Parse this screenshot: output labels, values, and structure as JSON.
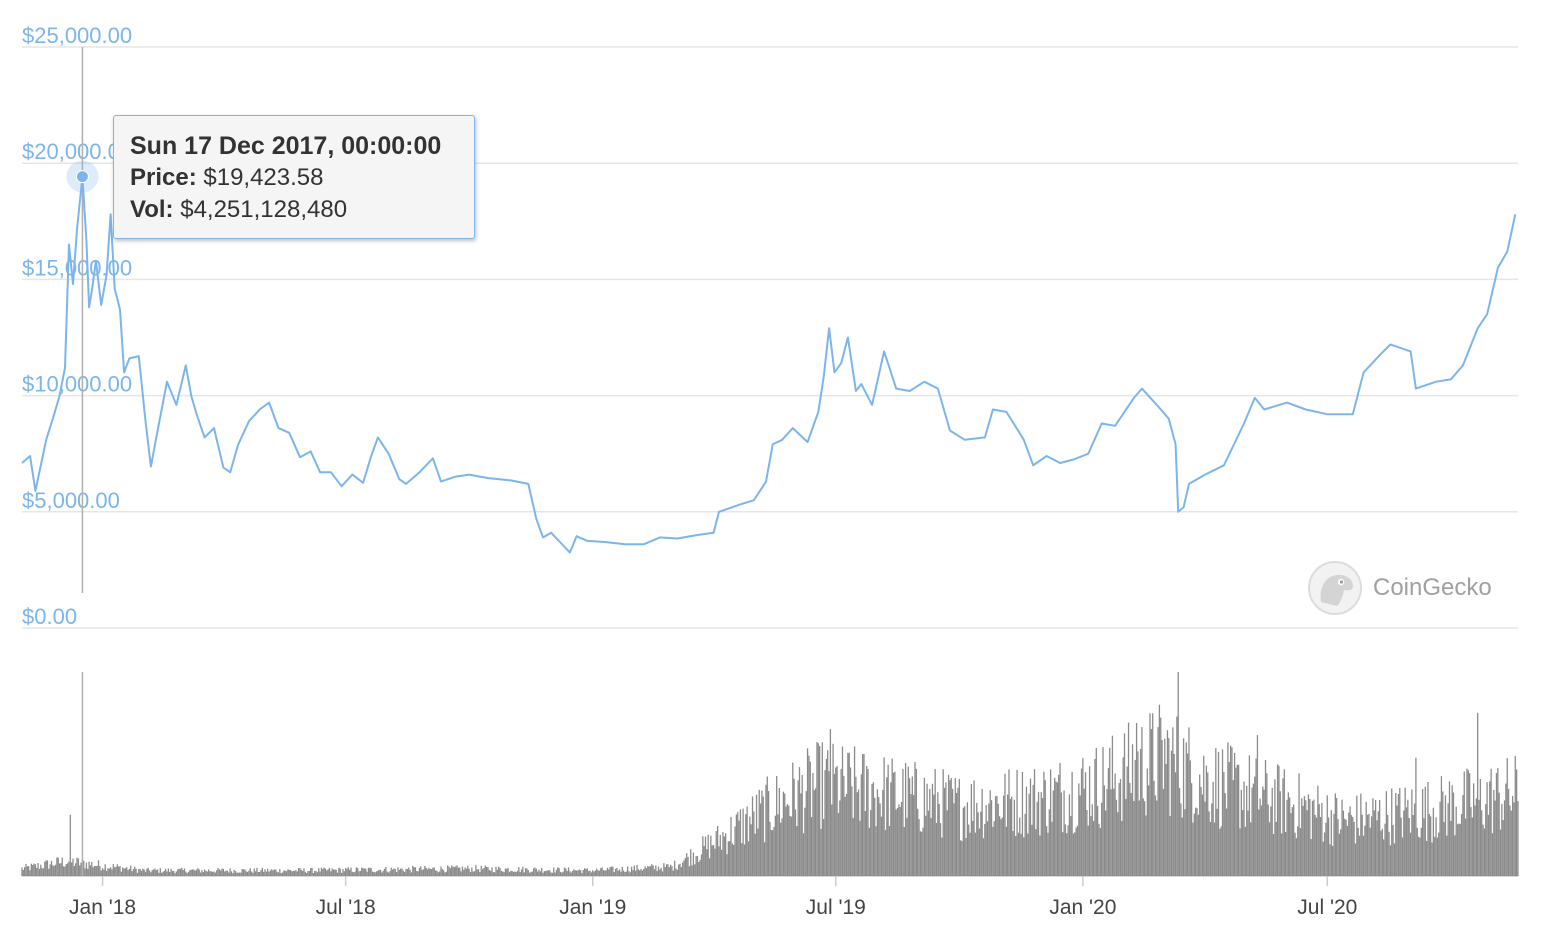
{
  "chart_data": {
    "type": "line",
    "price_axis": {
      "ticks": [
        "$25,000.00",
        "$20,000.00",
        "$15,000.00",
        "$10,000.00",
        "$5,000.00",
        "$0.00"
      ],
      "tick_values": [
        25000,
        20000,
        15000,
        10000,
        5000,
        0
      ],
      "ylim": [
        0,
        25000
      ]
    },
    "time_axis": {
      "ticks": [
        "Jan '18",
        "Jul '18",
        "Jan '19",
        "Jul '19",
        "Jan '20",
        "Jul '20"
      ],
      "tick_dates": [
        "2018-01-01",
        "2018-07-01",
        "2019-01-01",
        "2019-07-01",
        "2020-01-01",
        "2020-07-01"
      ],
      "xlim": [
        "2017-11-02",
        "2020-11-20"
      ]
    },
    "series": [
      {
        "color": "#7cb5ec",
        "points": [
          [
            "2017-11-02",
            7100
          ],
          [
            "2017-11-08",
            7400
          ],
          [
            "2017-11-12",
            5900
          ],
          [
            "2017-11-20",
            8100
          ],
          [
            "2017-11-26",
            9200
          ],
          [
            "2017-11-30",
            10000
          ],
          [
            "2017-12-04",
            11200
          ],
          [
            "2017-12-07",
            16500
          ],
          [
            "2017-12-10",
            14800
          ],
          [
            "2017-12-13",
            17200
          ],
          [
            "2017-12-17",
            19423.58
          ],
          [
            "2017-12-20",
            16600
          ],
          [
            "2017-12-22",
            13800
          ],
          [
            "2017-12-24",
            14500
          ],
          [
            "2017-12-27",
            15800
          ],
          [
            "2017-12-31",
            13900
          ],
          [
            "2018-01-04",
            15200
          ],
          [
            "2018-01-07",
            17800
          ],
          [
            "2018-01-10",
            14600
          ],
          [
            "2018-01-14",
            13700
          ],
          [
            "2018-01-17",
            11000
          ],
          [
            "2018-01-21",
            11600
          ],
          [
            "2018-01-28",
            11700
          ],
          [
            "2018-02-02",
            8900
          ],
          [
            "2018-02-06",
            6950
          ],
          [
            "2018-02-10",
            8200
          ],
          [
            "2018-02-18",
            10600
          ],
          [
            "2018-02-25",
            9600
          ],
          [
            "2018-03-04",
            11300
          ],
          [
            "2018-03-08",
            10000
          ],
          [
            "2018-03-12",
            9200
          ],
          [
            "2018-03-18",
            8200
          ],
          [
            "2018-03-25",
            8600
          ],
          [
            "2018-04-01",
            6900
          ],
          [
            "2018-04-06",
            6700
          ],
          [
            "2018-04-12",
            7900
          ],
          [
            "2018-04-20",
            8900
          ],
          [
            "2018-04-28",
            9400
          ],
          [
            "2018-05-05",
            9700
          ],
          [
            "2018-05-12",
            8600
          ],
          [
            "2018-05-20",
            8400
          ],
          [
            "2018-05-28",
            7350
          ],
          [
            "2018-06-05",
            7600
          ],
          [
            "2018-06-12",
            6700
          ],
          [
            "2018-06-20",
            6700
          ],
          [
            "2018-06-28",
            6100
          ],
          [
            "2018-07-06",
            6600
          ],
          [
            "2018-07-14",
            6250
          ],
          [
            "2018-07-20",
            7400
          ],
          [
            "2018-07-25",
            8200
          ],
          [
            "2018-08-02",
            7500
          ],
          [
            "2018-08-10",
            6400
          ],
          [
            "2018-08-15",
            6200
          ],
          [
            "2018-08-25",
            6700
          ],
          [
            "2018-09-04",
            7300
          ],
          [
            "2018-09-10",
            6300
          ],
          [
            "2018-09-20",
            6500
          ],
          [
            "2018-10-01",
            6600
          ],
          [
            "2018-10-15",
            6450
          ],
          [
            "2018-11-01",
            6350
          ],
          [
            "2018-11-14",
            6200
          ],
          [
            "2018-11-20",
            4700
          ],
          [
            "2018-11-25",
            3900
          ],
          [
            "2018-12-01",
            4100
          ],
          [
            "2018-12-10",
            3550
          ],
          [
            "2018-12-15",
            3250
          ],
          [
            "2018-12-20",
            3950
          ],
          [
            "2018-12-28",
            3750
          ],
          [
            "2019-01-10",
            3700
          ],
          [
            "2019-01-25",
            3600
          ],
          [
            "2019-02-08",
            3600
          ],
          [
            "2019-02-20",
            3900
          ],
          [
            "2019-03-05",
            3850
          ],
          [
            "2019-03-20",
            4000
          ],
          [
            "2019-04-01",
            4100
          ],
          [
            "2019-04-05",
            5000
          ],
          [
            "2019-04-20",
            5300
          ],
          [
            "2019-05-01",
            5500
          ],
          [
            "2019-05-10",
            6300
          ],
          [
            "2019-05-15",
            7900
          ],
          [
            "2019-05-22",
            8100
          ],
          [
            "2019-05-30",
            8600
          ],
          [
            "2019-06-10",
            8000
          ],
          [
            "2019-06-18",
            9300
          ],
          [
            "2019-06-22",
            10800
          ],
          [
            "2019-06-26",
            12900
          ],
          [
            "2019-06-30",
            11000
          ],
          [
            "2019-07-05",
            11400
          ],
          [
            "2019-07-10",
            12500
          ],
          [
            "2019-07-16",
            10200
          ],
          [
            "2019-07-20",
            10500
          ],
          [
            "2019-07-28",
            9600
          ],
          [
            "2019-08-06",
            11900
          ],
          [
            "2019-08-15",
            10300
          ],
          [
            "2019-08-25",
            10200
          ],
          [
            "2019-09-05",
            10600
          ],
          [
            "2019-09-15",
            10300
          ],
          [
            "2019-09-24",
            8500
          ],
          [
            "2019-10-05",
            8100
          ],
          [
            "2019-10-20",
            8200
          ],
          [
            "2019-10-26",
            9400
          ],
          [
            "2019-11-05",
            9300
          ],
          [
            "2019-11-18",
            8100
          ],
          [
            "2019-11-25",
            7000
          ],
          [
            "2019-12-05",
            7400
          ],
          [
            "2019-12-15",
            7100
          ],
          [
            "2019-12-25",
            7250
          ],
          [
            "2020-01-05",
            7500
          ],
          [
            "2020-01-15",
            8800
          ],
          [
            "2020-01-25",
            8700
          ],
          [
            "2020-02-08",
            9900
          ],
          [
            "2020-02-14",
            10300
          ],
          [
            "2020-02-25",
            9600
          ],
          [
            "2020-03-05",
            9000
          ],
          [
            "2020-03-10",
            7900
          ],
          [
            "2020-03-12",
            5000
          ],
          [
            "2020-03-16",
            5200
          ],
          [
            "2020-03-20",
            6200
          ],
          [
            "2020-04-01",
            6600
          ],
          [
            "2020-04-15",
            7000
          ],
          [
            "2020-04-30",
            8800
          ],
          [
            "2020-05-08",
            9900
          ],
          [
            "2020-05-15",
            9400
          ],
          [
            "2020-06-01",
            9700
          ],
          [
            "2020-06-15",
            9400
          ],
          [
            "2020-07-01",
            9200
          ],
          [
            "2020-07-20",
            9200
          ],
          [
            "2020-07-28",
            11000
          ],
          [
            "2020-08-10",
            11800
          ],
          [
            "2020-08-17",
            12200
          ],
          [
            "2020-09-01",
            11900
          ],
          [
            "2020-09-05",
            10300
          ],
          [
            "2020-09-20",
            10600
          ],
          [
            "2020-10-01",
            10700
          ],
          [
            "2020-10-10",
            11300
          ],
          [
            "2020-10-21",
            12900
          ],
          [
            "2020-10-28",
            13500
          ],
          [
            "2020-11-05",
            15500
          ],
          [
            "2020-11-12",
            16200
          ],
          [
            "2020-11-18",
            17800
          ]
        ]
      }
    ],
    "volume": {
      "color": "#8a8a8a",
      "profile": [
        [
          "2017-11-02",
          0.04
        ],
        [
          "2017-12-05",
          0.08
        ],
        [
          "2018-02-01",
          0.03
        ],
        [
          "2018-06-01",
          0.03
        ],
        [
          "2018-10-01",
          0.04
        ],
        [
          "2019-01-01",
          0.03
        ],
        [
          "2019-03-01",
          0.05
        ],
        [
          "2019-04-01",
          0.18
        ],
        [
          "2019-05-15",
          0.38
        ],
        [
          "2019-06-20",
          0.5
        ],
        [
          "2019-08-01",
          0.46
        ],
        [
          "2019-10-01",
          0.38
        ],
        [
          "2019-12-01",
          0.42
        ],
        [
          "2020-01-15",
          0.5
        ],
        [
          "2020-03-01",
          0.65
        ],
        [
          "2020-04-01",
          0.52
        ],
        [
          "2020-06-01",
          0.4
        ],
        [
          "2020-07-15",
          0.3
        ],
        [
          "2020-09-15",
          0.36
        ],
        [
          "2020-11-20",
          0.45
        ]
      ],
      "spikes": [
        [
          "2017-12-08",
          0.3
        ],
        [
          "2019-06-27",
          0.72
        ],
        [
          "2020-02-10",
          0.75
        ],
        [
          "2020-03-12",
          1.0
        ],
        [
          "2020-05-10",
          0.69
        ],
        [
          "2020-10-21",
          0.8
        ],
        [
          "2020-09-05",
          0.58
        ]
      ]
    },
    "legend": "none",
    "grid": true
  },
  "tooltip": {
    "date": "Sun 17 Dec 2017, 00:00:00",
    "price_label": "Price:",
    "price_value": "$19,423.58",
    "vol_label": "Vol:",
    "vol_value": "$4,251,128,480",
    "point_date": "2017-12-17",
    "point_price": 19423.58
  },
  "watermark": {
    "text": "CoinGecko",
    "icon": "gecko-logo-icon"
  }
}
